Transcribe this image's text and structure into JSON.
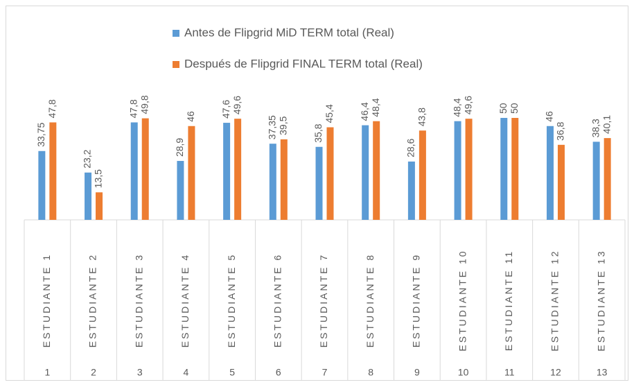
{
  "chart_data": {
    "type": "bar",
    "categories": [
      "ESTUDIANTE 1",
      "ESTUDIANTE 2",
      "ESTUDIANTE 3",
      "ESTUDIANTE 4",
      "ESTUDIANTE 5",
      "ESTUDIANTE 6",
      "ESTUDIANTE 7",
      "ESTUDIANTE 8",
      "ESTUDIANTE 9",
      "ESTUDIANTE 10",
      "ESTUDIANTE 11",
      "ESTUDIANTE 12",
      "ESTUDIANTE 13"
    ],
    "category_numbers": [
      1,
      2,
      3,
      4,
      5,
      6,
      7,
      8,
      9,
      10,
      11,
      12,
      13
    ],
    "series": [
      {
        "name": "Antes de Flipgrid MiD TERM total (Real)",
        "color": "#5b9bd5",
        "values": [
          33.75,
          23.2,
          47.8,
          28.9,
          47.6,
          37.35,
          35.8,
          46.4,
          28.6,
          48.4,
          50,
          46,
          38.3
        ],
        "value_labels": [
          "33,75",
          "23,2",
          "47,8",
          "28,9",
          "47,6",
          "37,35",
          "35,8",
          "46,4",
          "28,6",
          "48,4",
          "50",
          "46",
          "38,3"
        ]
      },
      {
        "name": "Después de Flipgrid FINAL TERM total (Real)",
        "color": "#ed7d31",
        "values": [
          47.8,
          13.5,
          49.8,
          46,
          49.6,
          39.5,
          45.4,
          48.4,
          43.8,
          49.6,
          50,
          36.8,
          40.1
        ],
        "value_labels": [
          "47,8",
          "13,5",
          "49,8",
          "46",
          "49,6",
          "39,5",
          "45,4",
          "48,4",
          "43,8",
          "49,6",
          "50",
          "36,8",
          "40,1"
        ]
      }
    ],
    "ylim": [
      0,
      60
    ],
    "legend": "top"
  }
}
